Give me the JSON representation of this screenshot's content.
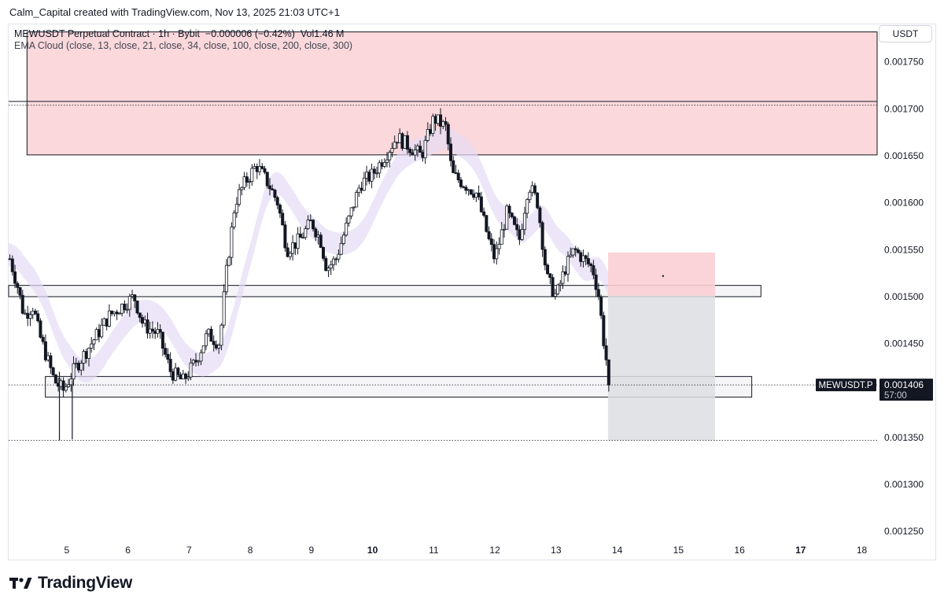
{
  "caption": "Calm_Capital created with TradingView.com, Nov 13, 2025 21:03 UTC+1",
  "legend": {
    "symbol_line": "MEWUSDT Perpetual Contract · 1h · Bybit",
    "change": "−0.000006 (−0.42%)",
    "volume": "Vol1.46 M",
    "indicator": "EMA Cloud (close, 13, close, 21, close, 34, close, 100, close, 200, close, 300)"
  },
  "currency": "USDT",
  "brand": "TradingView",
  "colors": {
    "candle": "#131722",
    "supply_zone": "#f8c7cc",
    "ema_cloud": "#e6dcf5",
    "stop_zone": "#f9cfd4",
    "target_zone": "#dddee2",
    "price_label_bg": "#131722"
  },
  "chart_data": {
    "type": "candlestick",
    "ylim": [
      0.00122,
      0.00179
    ],
    "x_ticks": [
      {
        "label": "5",
        "x": 5,
        "bold": false
      },
      {
        "label": "6",
        "x": 6,
        "bold": false
      },
      {
        "label": "7",
        "x": 7,
        "bold": false
      },
      {
        "label": "8",
        "x": 8,
        "bold": false
      },
      {
        "label": "9",
        "x": 9,
        "bold": false
      },
      {
        "label": "10",
        "x": 10,
        "bold": true
      },
      {
        "label": "11",
        "x": 11,
        "bold": false
      },
      {
        "label": "12",
        "x": 12,
        "bold": false
      },
      {
        "label": "13",
        "x": 13,
        "bold": false
      },
      {
        "label": "14",
        "x": 14,
        "bold": false
      },
      {
        "label": "15",
        "x": 15,
        "bold": false
      },
      {
        "label": "16",
        "x": 16,
        "bold": false
      },
      {
        "label": "17",
        "x": 17,
        "bold": true
      },
      {
        "label": "18",
        "x": 18,
        "bold": false
      }
    ],
    "xlim": [
      4.05,
      18.25
    ],
    "y_ticks": [
      "0.001750",
      "0.001700",
      "0.001650",
      "0.001600",
      "0.001550",
      "0.001500",
      "0.001450",
      "0.001350",
      "0.001300",
      "0.001250"
    ],
    "y_tick_values": [
      0.00175,
      0.0017,
      0.00165,
      0.0016,
      0.00155,
      0.0015,
      0.00145,
      0.00135,
      0.0013,
      0.00125
    ],
    "price_path": [
      [
        4.05,
        0.001545
      ],
      [
        4.2,
        0.00151
      ],
      [
        4.3,
        0.00148
      ],
      [
        4.45,
        0.00149
      ],
      [
        4.55,
        0.00146
      ],
      [
        4.7,
        0.00143
      ],
      [
        4.8,
        0.00141
      ],
      [
        4.95,
        0.0014
      ],
      [
        5.1,
        0.00142
      ],
      [
        5.3,
        0.00144
      ],
      [
        5.5,
        0.00146
      ],
      [
        5.7,
        0.00148
      ],
      [
        5.9,
        0.00149
      ],
      [
        6.1,
        0.0015
      ],
      [
        6.25,
        0.00147
      ],
      [
        6.5,
        0.00146
      ],
      [
        6.7,
        0.00142
      ],
      [
        6.9,
        0.00141
      ],
      [
        7.1,
        0.00143
      ],
      [
        7.3,
        0.00146
      ],
      [
        7.5,
        0.00145
      ],
      [
        7.6,
        0.00152
      ],
      [
        7.75,
        0.0016
      ],
      [
        7.9,
        0.00162
      ],
      [
        8.1,
        0.00164
      ],
      [
        8.3,
        0.00162
      ],
      [
        8.45,
        0.0016
      ],
      [
        8.6,
        0.00155
      ],
      [
        8.8,
        0.00156
      ],
      [
        9.0,
        0.00158
      ],
      [
        9.15,
        0.00156
      ],
      [
        9.25,
        0.00153
      ],
      [
        9.4,
        0.00154
      ],
      [
        9.6,
        0.00158
      ],
      [
        9.8,
        0.00162
      ],
      [
        10.0,
        0.00163
      ],
      [
        10.2,
        0.00165
      ],
      [
        10.4,
        0.00167
      ],
      [
        10.6,
        0.00166
      ],
      [
        10.8,
        0.00165
      ],
      [
        11.0,
        0.00169
      ],
      [
        11.2,
        0.00168
      ],
      [
        11.3,
        0.00163
      ],
      [
        11.5,
        0.00162
      ],
      [
        11.7,
        0.00161
      ],
      [
        11.9,
        0.00156
      ],
      [
        12.0,
        0.00154
      ],
      [
        12.2,
        0.00159
      ],
      [
        12.4,
        0.00156
      ],
      [
        12.55,
        0.00162
      ],
      [
        12.7,
        0.0016
      ],
      [
        12.85,
        0.00152
      ],
      [
        13.0,
        0.0015
      ],
      [
        13.15,
        0.00153
      ],
      [
        13.3,
        0.00155
      ],
      [
        13.45,
        0.00154
      ],
      [
        13.6,
        0.00153
      ],
      [
        13.7,
        0.0015
      ],
      [
        13.8,
        0.00144
      ],
      [
        13.9,
        0.001406
      ]
    ],
    "wicks": [
      {
        "x": 4.88,
        "low": 0.001347,
        "high": 0.00142
      },
      {
        "x": 5.09,
        "low": 0.001348,
        "high": 0.00141
      }
    ],
    "zones": [
      {
        "name": "supply-zone",
        "x_from": 4.35,
        "x_to": 18.25,
        "y_from": 0.001651,
        "y_to": 0.001782,
        "style": "red"
      },
      {
        "name": "resistance-box",
        "x_from": 4.05,
        "x_to": 16.35,
        "y_from": 0.0015,
        "y_to": 0.001512,
        "style": "outline"
      },
      {
        "name": "support-box",
        "x_from": 4.65,
        "x_to": 16.2,
        "y_from": 0.001393,
        "y_to": 0.001415,
        "style": "outline"
      },
      {
        "name": "stop-zone",
        "x_from": 13.85,
        "x_to": 15.6,
        "y_from": 0.001501,
        "y_to": 0.001547,
        "style": "stop"
      },
      {
        "name": "target-zone",
        "x_from": 13.85,
        "x_to": 15.6,
        "y_from": 0.001347,
        "y_to": 0.001501,
        "style": "target"
      }
    ],
    "horizontal_lines": [
      {
        "y": 0.001708,
        "style": "solid"
      },
      {
        "y": 0.001704,
        "style": "dotted"
      },
      {
        "y": 0.001406,
        "style": "dotted"
      },
      {
        "y": 0.001347,
        "style": "dotted"
      }
    ],
    "last_price": {
      "symbol": "MEWUSDT.P",
      "value": "0.001406",
      "countdown": "57:00",
      "y": 0.001406
    }
  }
}
